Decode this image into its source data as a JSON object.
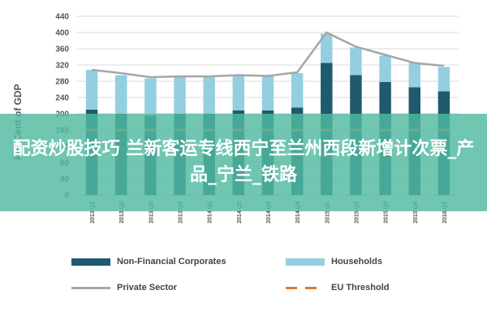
{
  "chart_data": {
    "type": "bar",
    "stacked": true,
    "title": "",
    "ylabel": "Per Cent of GDP",
    "xlabel": "",
    "ylim": [
      0,
      440
    ],
    "yticks": [
      0,
      40,
      80,
      120,
      160,
      200,
      240,
      280,
      320,
      360,
      400,
      440
    ],
    "grid": true,
    "categories": [
      "2013 Q1",
      "2013 Q2",
      "2013 Q3",
      "2013 Q4",
      "2014 Q1",
      "2014 Q2",
      "2014 Q3",
      "2014 Q4",
      "2015 Q1",
      "2015 Q2",
      "2015 Q3",
      "2015 Q4",
      "2016 Q1"
    ],
    "series": [
      {
        "name": "Non-Financial Corporates",
        "kind": "bar",
        "color": "#1f5a6e",
        "values": [
          210,
          200,
          195,
          200,
          200,
          208,
          208,
          215,
          325,
          295,
          278,
          265,
          255
        ]
      },
      {
        "name": "Households",
        "kind": "bar",
        "color": "#93cfe0",
        "values": [
          98,
          95,
          92,
          90,
          90,
          87,
          85,
          85,
          72,
          68,
          65,
          60,
          60
        ]
      },
      {
        "name": "Private Sector",
        "kind": "line",
        "color": "#a6a6a6",
        "values": [
          308,
          300,
          290,
          292,
          292,
          295,
          293,
          302,
          400,
          365,
          345,
          325,
          318
        ]
      },
      {
        "name": "EU Threshold",
        "kind": "dashed-line",
        "color": "#e07a2e",
        "values": [
          160,
          160,
          160,
          160,
          160,
          160,
          160,
          160,
          160,
          160,
          160,
          160,
          160
        ]
      }
    ],
    "legend_position": "bottom"
  },
  "overlay": {
    "banner_text": "配资炒股技巧 兰新客运专线西宁至兰州西段新增计次票_产品_宁兰_铁路"
  }
}
